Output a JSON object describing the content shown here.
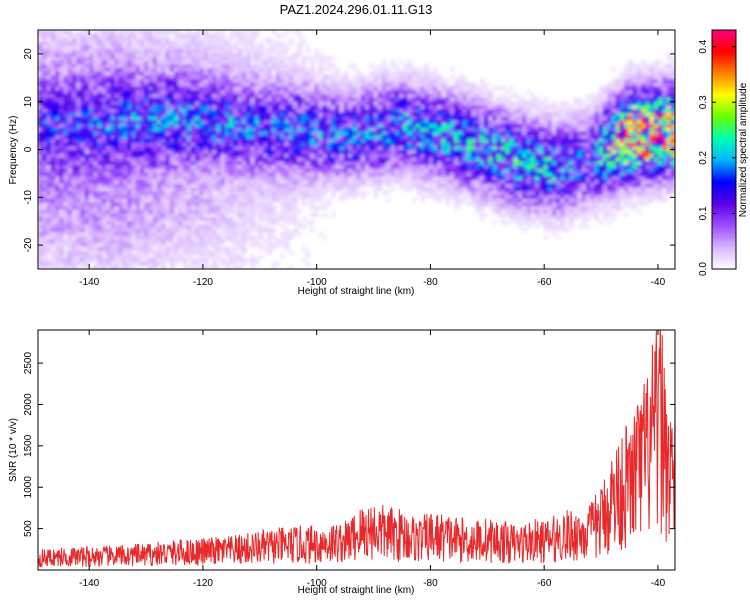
{
  "title": "PAZ1.2024.296.01.11.G13",
  "chart_data": [
    {
      "type": "heatmap",
      "xlabel": "Height of straight line (km)",
      "ylabel": "Frequency (Hz)",
      "xlim": [
        -149,
        -37
      ],
      "ylim": [
        -25,
        25
      ],
      "xticks": [
        -140,
        -120,
        -100,
        -80,
        -60,
        -40
      ],
      "yticks": [
        -20,
        -10,
        0,
        10,
        20
      ],
      "colorbar": {
        "label": "Normalized spectral amplitude",
        "range": [
          0.0,
          0.43
        ],
        "ticks": [
          0.0,
          0.1,
          0.2,
          0.3,
          0.4
        ],
        "colormap": [
          "#ffffff",
          "#d8b4ff",
          "#9d4dff",
          "#5a00e6",
          "#0000ff",
          "#00b4ff",
          "#00ffb4",
          "#66ff00",
          "#ffff00",
          "#ff8000",
          "#ff0000",
          "#ff0080"
        ]
      },
      "ridge": [
        {
          "x": -146,
          "y": 4,
          "amp": 0.08
        },
        {
          "x": -135,
          "y": 5,
          "amp": 0.1
        },
        {
          "x": -125,
          "y": 6,
          "amp": 0.12
        },
        {
          "x": -115,
          "y": 5,
          "amp": 0.13
        },
        {
          "x": -105,
          "y": 4,
          "amp": 0.14
        },
        {
          "x": -95,
          "y": 3,
          "amp": 0.15
        },
        {
          "x": -85,
          "y": 5,
          "amp": 0.17
        },
        {
          "x": -75,
          "y": 2,
          "amp": 0.18
        },
        {
          "x": -65,
          "y": -2,
          "amp": 0.2
        },
        {
          "x": -58,
          "y": -4,
          "amp": 0.18
        },
        {
          "x": -52,
          "y": -2,
          "amp": 0.14
        },
        {
          "x": -45,
          "y": 3,
          "amp": 0.38
        },
        {
          "x": -40,
          "y": 4,
          "amp": 0.36
        }
      ]
    },
    {
      "type": "line",
      "xlabel": "Height of straight line (km)",
      "ylabel": "SNR (10 * v/v)",
      "xlim": [
        -149,
        -37
      ],
      "ylim": [
        0,
        2900
      ],
      "xticks": [
        -140,
        -120,
        -100,
        -80,
        -60,
        -40
      ],
      "yticks": [
        500,
        1000,
        1500,
        2000,
        2500
      ],
      "color": "#e8282a",
      "x": [
        -149,
        -145,
        -140,
        -135,
        -130,
        -125,
        -120,
        -115,
        -110,
        -105,
        -100,
        -95,
        -92,
        -90,
        -88,
        -85,
        -82,
        -80,
        -77,
        -75,
        -72,
        -70,
        -67,
        -65,
        -62,
        -60,
        -57,
        -55,
        -52,
        -50,
        -49,
        -48,
        -47,
        -46,
        -45,
        -44,
        -43,
        -42,
        -41,
        -40,
        -39.5,
        -39,
        -38.5,
        -38,
        -37
      ],
      "y": [
        220,
        240,
        250,
        260,
        280,
        320,
        340,
        360,
        420,
        460,
        480,
        520,
        700,
        750,
        680,
        650,
        560,
        620,
        600,
        560,
        540,
        560,
        520,
        480,
        540,
        520,
        620,
        650,
        700,
        900,
        1100,
        1300,
        1400,
        1600,
        1500,
        1800,
        1900,
        2100,
        2400,
        2600,
        2900,
        2500,
        2100,
        1900,
        1700
      ]
    }
  ]
}
